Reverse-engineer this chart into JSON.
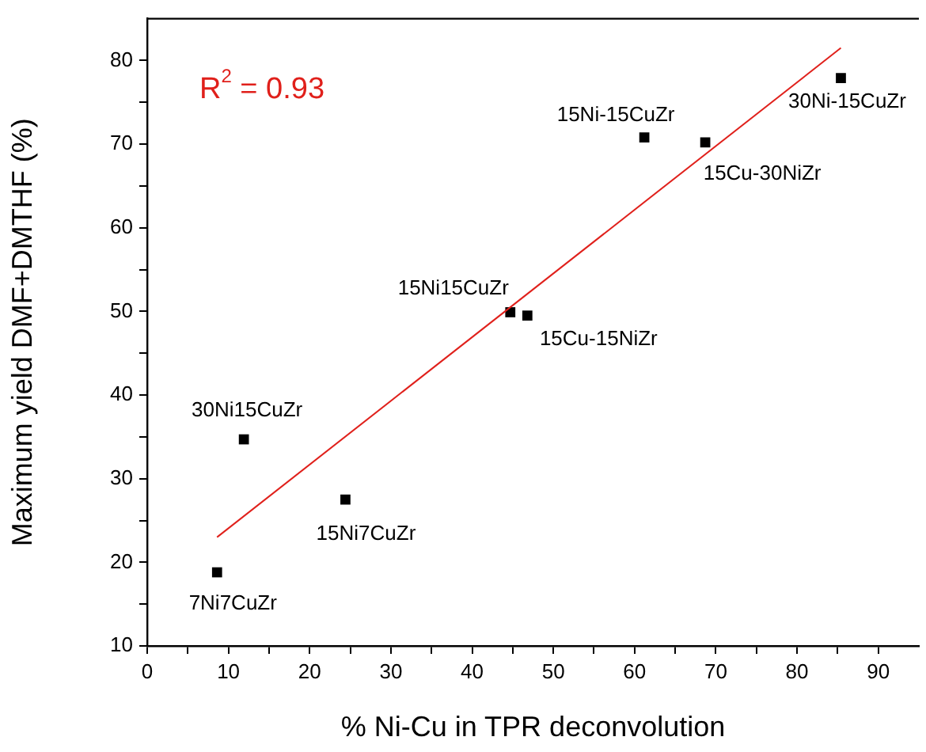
{
  "chart_data": {
    "type": "scatter",
    "xlabel": "% Ni-Cu in TPR deconvolution",
    "ylabel": "Maximum yield DMF+DMTHF (%)",
    "xlim": [
      0,
      95
    ],
    "ylim": [
      10,
      85
    ],
    "xticks": [
      0,
      {
        "value": 5,
        "label": null
      },
      10,
      {
        "value": 15,
        "label": null
      },
      20,
      {
        "value": 25,
        "label": null
      },
      30,
      {
        "value": 35,
        "label": null
      },
      40,
      {
        "value": 45,
        "label": null
      },
      50,
      {
        "value": 55,
        "label": null
      },
      60,
      {
        "value": 65,
        "label": null
      },
      70,
      {
        "value": 75,
        "label": null
      },
      80,
      {
        "value": 85,
        "label": null
      },
      90
    ],
    "yticks": [
      10,
      {
        "value": 15,
        "label": null
      },
      20,
      {
        "value": 25,
        "label": null
      },
      30,
      {
        "value": 35,
        "label": null
      },
      40,
      {
        "value": 45,
        "label": null
      },
      50,
      {
        "value": 55,
        "label": null
      },
      60,
      {
        "value": 65,
        "label": null
      },
      70,
      {
        "value": 75,
        "label": null
      },
      80
    ],
    "grid": false,
    "legend": false,
    "marker": "square",
    "series": [
      {
        "color": "#000000",
        "x": [
          8.6,
          11.9,
          24.4,
          44.7,
          46.8,
          61.2,
          68.7,
          85.4
        ],
        "values": [
          18.8,
          34.7,
          27.5,
          49.9,
          49.5,
          70.8,
          70.2,
          77.9
        ]
      },
      {
        "type": "line",
        "color": "#e0201b",
        "x": [
          8.6,
          85.4
        ],
        "values": [
          23.0,
          81.5
        ],
        "marker": "none",
        "line_style": "solid"
      }
    ],
    "annotations": [
      "R$^{2}$ = 0.93",
      {
        "text": "7Ni7CuZr",
        "x": 8.6,
        "y": 18.8
      },
      {
        "text": "30Ni15CuZr",
        "x": 11.9,
        "y": 34.7
      },
      {
        "text": "15Ni7CuZr",
        "x": 24.4,
        "y": 27.5
      },
      {
        "text": "15Ni15CuZr",
        "x": 44.7,
        "y": 49.9
      },
      {
        "text": "15Cu-15NiZr",
        "x": 46.8,
        "y": 49.5
      },
      {
        "text": "15Ni-15CuZr",
        "x": 61.2,
        "y": 70.8
      },
      {
        "text": "15Cu-30NiZr",
        "x": 68.7,
        "y": 70.2
      },
      {
        "text": "30Ni-15CuZr",
        "x": 85.4,
        "y": 77.9
      }
    ]
  }
}
